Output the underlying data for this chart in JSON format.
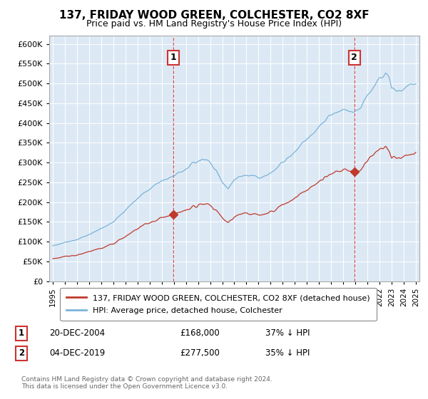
{
  "title": "137, FRIDAY WOOD GREEN, COLCHESTER, CO2 8XF",
  "subtitle": "Price paid vs. HM Land Registry's House Price Index (HPI)",
  "plot_bg_color": "#dce9f5",
  "hpi_color": "#7ab3d9",
  "price_color": "#c0392b",
  "ylim": [
    0,
    620000
  ],
  "yticks": [
    0,
    50000,
    100000,
    150000,
    200000,
    250000,
    300000,
    350000,
    400000,
    450000,
    500000,
    550000,
    600000
  ],
  "xlim_start": 1994.7,
  "xlim_end": 2025.3,
  "xticks": [
    1995,
    1996,
    1997,
    1998,
    1999,
    2000,
    2001,
    2002,
    2003,
    2004,
    2005,
    2006,
    2007,
    2008,
    2009,
    2010,
    2011,
    2012,
    2013,
    2014,
    2015,
    2016,
    2017,
    2018,
    2019,
    2020,
    2021,
    2022,
    2023,
    2024,
    2025
  ],
  "sale1_x": 2004.97,
  "sale1_y": 168000,
  "sale1_label": "1",
  "sale2_x": 2019.92,
  "sale2_y": 277500,
  "sale2_label": "2",
  "legend_line1": "137, FRIDAY WOOD GREEN, COLCHESTER, CO2 8XF (detached house)",
  "legend_line2": "HPI: Average price, detached house, Colchester",
  "annot1_date": "20-DEC-2004",
  "annot1_price": "£168,000",
  "annot1_hpi": "37% ↓ HPI",
  "annot2_date": "04-DEC-2019",
  "annot2_price": "£277,500",
  "annot2_hpi": "35% ↓ HPI",
  "footer": "Contains HM Land Registry data © Crown copyright and database right 2024.\nThis data is licensed under the Open Government Licence v3.0."
}
